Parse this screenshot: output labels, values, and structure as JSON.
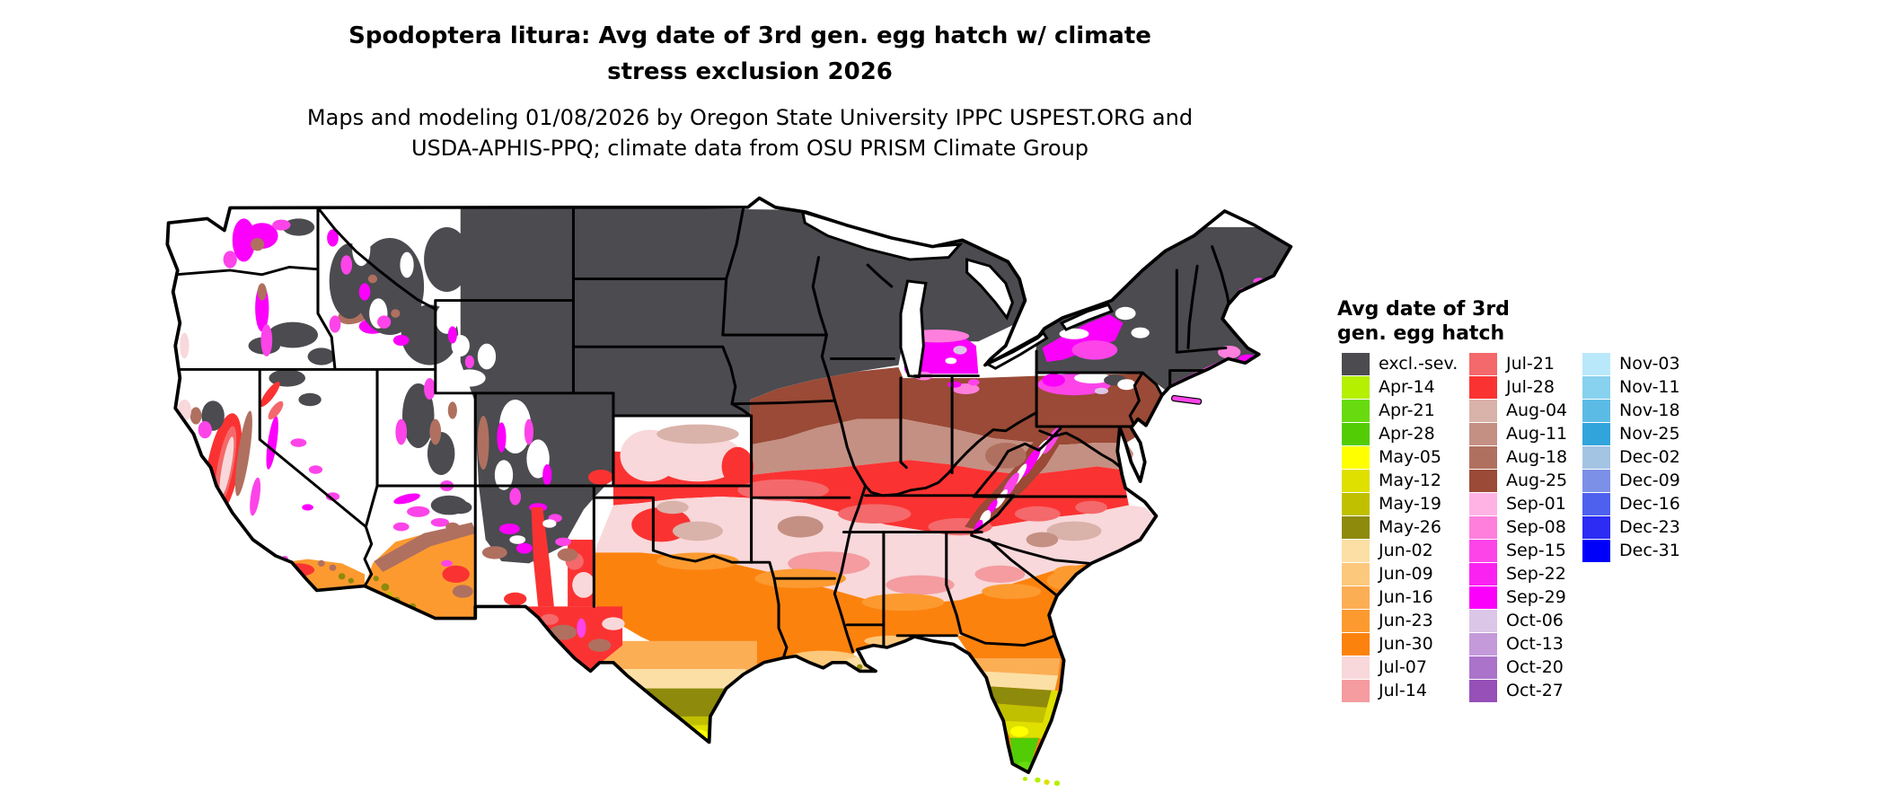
{
  "title": {
    "line1": "Spodoptera litura: Avg date of 3rd gen. egg hatch w/ climate",
    "line2": "stress exclusion 2026"
  },
  "subtitle": {
    "line1": "Maps and modeling 01/08/2026 by Oregon State University IPPC USPEST.ORG and",
    "line2": "USDA-APHIS-PPQ; climate data from OSU PRISM Climate Group"
  },
  "legend": {
    "title_line1": "Avg date of 3rd",
    "title_line2": "gen. egg hatch",
    "columns": [
      [
        {
          "label": "excl.-sev.",
          "color": "#4B4B50"
        },
        {
          "label": "Apr-14",
          "color": "#B4F000"
        },
        {
          "label": "Apr-21",
          "color": "#67DA10"
        },
        {
          "label": "Apr-28",
          "color": "#52CC05"
        },
        {
          "label": "May-05",
          "color": "#FFFF00"
        },
        {
          "label": "May-12",
          "color": "#DFDF00"
        },
        {
          "label": "May-19",
          "color": "#C0C000"
        },
        {
          "label": "May-26",
          "color": "#8E8A0B"
        },
        {
          "label": "Jun-02",
          "color": "#FCDFA4"
        },
        {
          "label": "Jun-09",
          "color": "#FCC87C"
        },
        {
          "label": "Jun-16",
          "color": "#FCAE55"
        },
        {
          "label": "Jun-23",
          "color": "#FC9A30"
        },
        {
          "label": "Jun-30",
          "color": "#FC820E"
        },
        {
          "label": "Jul-07",
          "color": "#F8D8DA"
        },
        {
          "label": "Jul-14",
          "color": "#F49CA0"
        }
      ],
      [
        {
          "label": "Jul-21",
          "color": "#F4696B"
        },
        {
          "label": "Jul-28",
          "color": "#FA3332"
        },
        {
          "label": "Aug-04",
          "color": "#D9B2A9"
        },
        {
          "label": "Aug-11",
          "color": "#C49083"
        },
        {
          "label": "Aug-18",
          "color": "#B07060"
        },
        {
          "label": "Aug-25",
          "color": "#9A4A36"
        },
        {
          "label": "Sep-01",
          "color": "#FFB3E5"
        },
        {
          "label": "Sep-08",
          "color": "#FF7FDD"
        },
        {
          "label": "Sep-15",
          "color": "#FC44E9"
        },
        {
          "label": "Sep-22",
          "color": "#FA22F0"
        },
        {
          "label": "Sep-29",
          "color": "#FB00FB"
        },
        {
          "label": "Oct-06",
          "color": "#DCC6E7"
        },
        {
          "label": "Oct-13",
          "color": "#C49ADB"
        },
        {
          "label": "Oct-20",
          "color": "#AB73CA"
        },
        {
          "label": "Oct-27",
          "color": "#9650B8"
        }
      ],
      [
        {
          "label": "Nov-03",
          "color": "#B9E8FA"
        },
        {
          "label": "Nov-11",
          "color": "#88D1EF"
        },
        {
          "label": "Nov-18",
          "color": "#5CBBE4"
        },
        {
          "label": "Nov-25",
          "color": "#31A5DB"
        },
        {
          "label": "Dec-02",
          "color": "#A4C4E4"
        },
        {
          "label": "Dec-09",
          "color": "#7C90E8"
        },
        {
          "label": "Dec-16",
          "color": "#4E60EE"
        },
        {
          "label": "Dec-23",
          "color": "#2C2CF4"
        },
        {
          "label": "Dec-31",
          "color": "#0000FA"
        }
      ]
    ]
  },
  "map": {
    "type": "US CONUS choropleth raster (avg date of 3rd generation egg hatch)",
    "regions": [
      {
        "area": "Northern tier: MT, ND, SD, NE, MN, WI, upper & northern lower MI, northern IA, Adirondacks, northern New England, CO/NM high country",
        "value": "excl.-sev. (dark gray)"
      },
      {
        "area": "Pacific Northwest & Great Basin interiors (WA, OR, ID, NV, UT)",
        "value": "white with Sep (magenta) mountain fringes and gray patches"
      },
      {
        "area": "California Central Valley and coast",
        "value": "Jul-14 to Jul-28 (salmon/red), Aug browns on Sierra flanks"
      },
      {
        "area": "Southern California and southwest Arizona",
        "value": "Jun-16 to Jun-30 (orange) with May-26 (olive) pockets"
      },
      {
        "area": "Central Plains (KS, northern OK, TX panhandle)",
        "value": "Jul-07 (pale pink) with Jul-28 (red) patches"
      },
      {
        "area": "Mid-South and mid-Atlantic (S MO, KY, TN, VA, NC)",
        "value": "Jul-21 to Aug-11 (reds and taupes)"
      },
      {
        "area": "Corn Belt / Ohio Valley (S IA, IL, IN, OH, PA, NJ)",
        "value": "Aug-04 to Aug-25 (browns)"
      },
      {
        "area": "Southern lower Michigan, western NY, northern PA, southern New England coast, Appalachian crests",
        "value": "Sep-08 to Sep-29 (magenta/pink)"
      },
      {
        "area": "Deep South (S OK, TX, LA, MS, AL, GA, SC coast, N FL)",
        "value": "Jun-09 to Jun-30 (oranges)"
      },
      {
        "area": "South Texas tip",
        "value": "May-12 to May-26 (olive to yellow)"
      },
      {
        "area": "Central and south Florida",
        "value": "May-26 through Apr-21/Apr-28 (olive, yellow, green at tip)"
      }
    ]
  }
}
